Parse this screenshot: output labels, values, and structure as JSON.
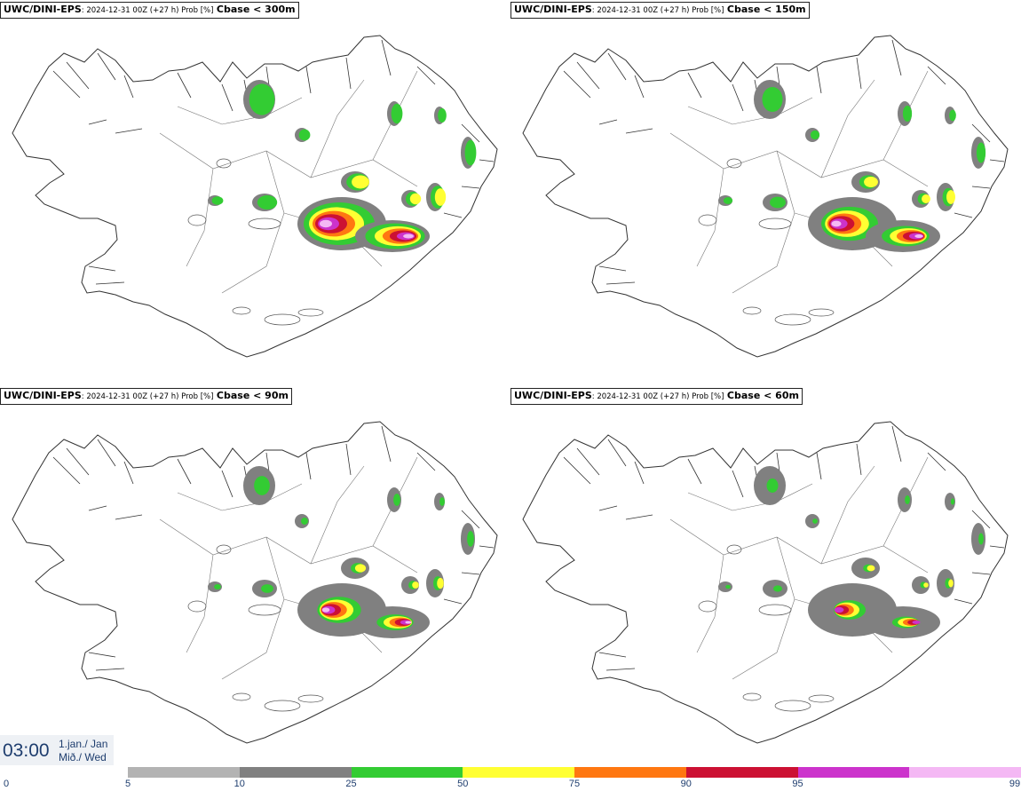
{
  "panels": [
    {
      "model": "UWC/DINI-EPS",
      "meta": ": 2024-12-31 00Z (+27 h) Prob [%]",
      "var": "Cbase < 300m",
      "spread": 1.0
    },
    {
      "model": "UWC/DINI-EPS",
      "meta": ": 2024-12-31 00Z (+27 h) Prob [%]",
      "var": "Cbase < 150m",
      "spread": 0.85
    },
    {
      "model": "UWC/DINI-EPS",
      "meta": ": 2024-12-31 00Z (+27 h) Prob [%]",
      "var": "Cbase < 90m",
      "spread": 0.7
    },
    {
      "model": "UWC/DINI-EPS",
      "meta": ": 2024-12-31 00Z (+27 h) Prob [%]",
      "var": "Cbase < 60m",
      "spread": 0.55
    }
  ],
  "time": {
    "hour": "03:00",
    "date_line1": "1.jan./ Jan",
    "date_line2": "Mið./ Wed"
  },
  "legend": {
    "min_label": "0",
    "ticks": [
      "5",
      "10",
      "25",
      "50",
      "75",
      "90",
      "95",
      "99"
    ],
    "colors": [
      "#b3b3b3",
      "#808080",
      "#33cc33",
      "#ffff33",
      "#ff7711",
      "#cc1133",
      "#cc33cc",
      "#f4b8f4"
    ]
  }
}
